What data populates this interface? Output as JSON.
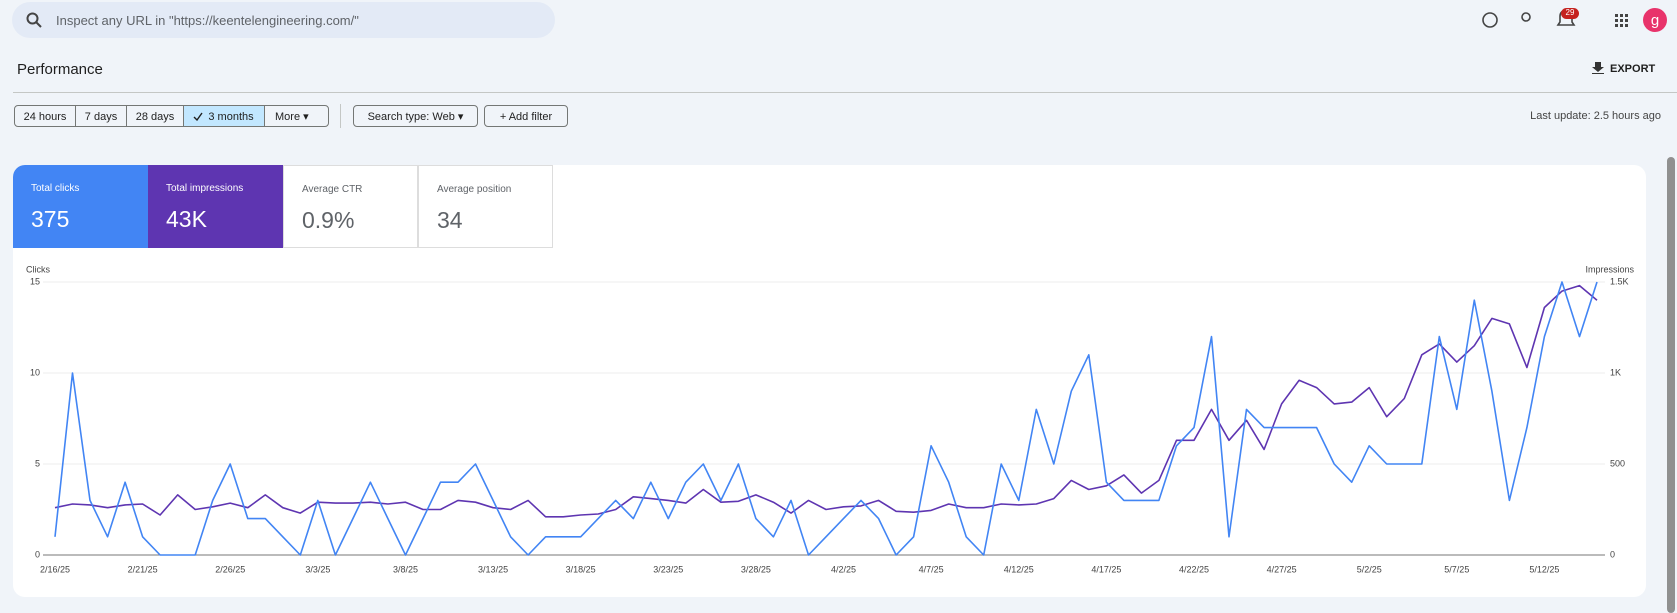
{
  "search": {
    "placeholder": "Inspect any URL in \"https://keentelengineering.com/\""
  },
  "header": {
    "badge": "29",
    "avatar": "g"
  },
  "title": "Performance",
  "export": "EXPORT",
  "filters": [
    "24 hours",
    "7 days",
    "28 days",
    "3 months",
    "More"
  ],
  "search_type": "Search type: Web",
  "add_filter": "Add filter",
  "last_update": "Last update: 2.5 hours ago",
  "metrics": [
    {
      "label": "Total clicks",
      "value": "375"
    },
    {
      "label": "Total impressions",
      "value": "43K"
    },
    {
      "label": "Average CTR",
      "value": "0.9%"
    },
    {
      "label": "Average position",
      "value": "34"
    }
  ],
  "chart_data": {
    "type": "line",
    "ylabel": "Clicks",
    "y2label": "Impressions",
    "categories": [
      "2/16/25",
      null,
      null,
      null,
      null,
      "2/21/25",
      null,
      null,
      null,
      null,
      "2/26/25",
      null,
      null,
      null,
      null,
      "3/3/25",
      null,
      null,
      null,
      null,
      "3/8/25",
      null,
      null,
      null,
      null,
      "3/13/25",
      null,
      null,
      null,
      null,
      "3/18/25",
      null,
      null,
      null,
      null,
      "3/23/25",
      null,
      null,
      null,
      null,
      "3/28/25",
      null,
      null,
      null,
      null,
      "4/2/25",
      null,
      null,
      null,
      null,
      "4/7/25",
      null,
      null,
      null,
      null,
      "4/12/25",
      null,
      null,
      null,
      null,
      "4/17/25",
      null,
      null,
      null,
      null,
      "4/22/25",
      null,
      null,
      null,
      null,
      "4/27/25",
      null,
      null,
      null,
      null,
      "5/2/25",
      null,
      null,
      null,
      null,
      "5/7/25",
      null,
      null,
      null,
      null,
      "5/12/25",
      null,
      null,
      null
    ],
    "series": [
      {
        "color": "#4285f4",
        "values": [
          1,
          10,
          3,
          1,
          4,
          1,
          0,
          0,
          0,
          3,
          5,
          2,
          2,
          1,
          0,
          3,
          0,
          2,
          4,
          2,
          0,
          2,
          4,
          4,
          5,
          3,
          1,
          0,
          1,
          1,
          1,
          2,
          3,
          2,
          4,
          2,
          4,
          5,
          3,
          5,
          2,
          1,
          3,
          0,
          1,
          2,
          3,
          2,
          0,
          1,
          6,
          4,
          1,
          0,
          5,
          3,
          8,
          5,
          9,
          11,
          4,
          3,
          3,
          3,
          6,
          7,
          12,
          1,
          8,
          7,
          7,
          7,
          7,
          5,
          4,
          6,
          5,
          5,
          5,
          12,
          8,
          14,
          9,
          3,
          7,
          12,
          15,
          12,
          15
        ]
      },
      {
        "color": "#5e35b1",
        "axis": "y2",
        "values": [
          260,
          280,
          275,
          260,
          275,
          280,
          220,
          330,
          250,
          265,
          285,
          260,
          330,
          260,
          230,
          290,
          285,
          285,
          290,
          280,
          290,
          250,
          250,
          300,
          290,
          260,
          250,
          300,
          210,
          210,
          220,
          225,
          250,
          320,
          310,
          300,
          285,
          360,
          290,
          295,
          330,
          290,
          230,
          300,
          250,
          265,
          270,
          300,
          240,
          235,
          245,
          280,
          260,
          260,
          280,
          275,
          280,
          310,
          410,
          360,
          380,
          440,
          340,
          410,
          630,
          630,
          800,
          630,
          740,
          580,
          830,
          960,
          920,
          830,
          840,
          920,
          760,
          860,
          1100,
          1160,
          1060,
          1150,
          1300,
          1270,
          1030,
          1360,
          1450,
          1480,
          1400
        ]
      }
    ],
    "ylim": [
      0,
      15
    ],
    "yticks": [
      0,
      5,
      10,
      15
    ],
    "y2lim": [
      0,
      1500
    ],
    "y2ticks": [
      0,
      500,
      {
        "value": 1000,
        "label": "1K"
      },
      {
        "value": 1500,
        "label": "1.5K"
      }
    ],
    "grid": true
  }
}
